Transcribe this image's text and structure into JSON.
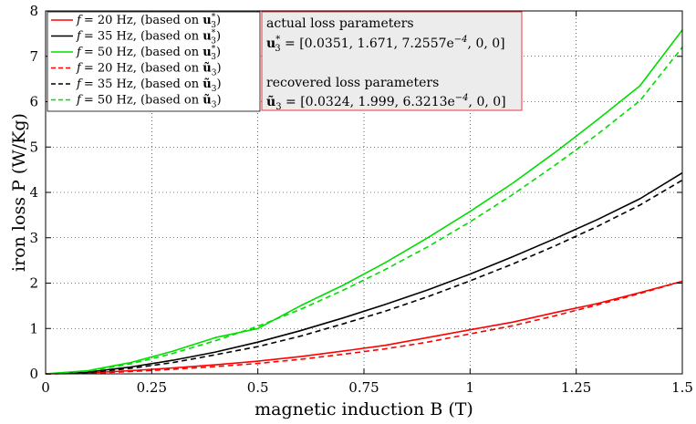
{
  "chart_data": {
    "type": "line",
    "xlabel": "magnetic induction B (T)",
    "ylabel": "iron loss P (W/Kg)",
    "xlim": [
      0,
      1.5
    ],
    "ylim": [
      0,
      8
    ],
    "x_ticks": [
      "0",
      "0.25",
      "0.5",
      "0.75",
      "1",
      "1.25",
      "1.5"
    ],
    "y_ticks": [
      "0",
      "1",
      "2",
      "3",
      "4",
      "5",
      "6",
      "7",
      "8"
    ],
    "grid": true,
    "legend_position": "top-left",
    "x": [
      0,
      0.1,
      0.2,
      0.3,
      0.4,
      0.5,
      0.6,
      0.7,
      0.8,
      0.9,
      1.0,
      1.1,
      1.2,
      1.3,
      1.4,
      1.5
    ],
    "series": [
      {
        "name": "f = 20 Hz, (based on u3*)",
        "color": "#ff0000",
        "dash": "solid",
        "values": [
          0,
          0.02,
          0.07,
          0.13,
          0.2,
          0.28,
          0.38,
          0.5,
          0.63,
          0.8,
          0.97,
          1.14,
          1.35,
          1.55,
          1.79,
          2.04
        ]
      },
      {
        "name": "f = 35 Hz, (based on u3*)",
        "color": "#000000",
        "dash": "solid",
        "values": [
          0,
          0.04,
          0.15,
          0.3,
          0.48,
          0.7,
          0.95,
          1.23,
          1.53,
          1.85,
          2.2,
          2.58,
          2.98,
          3.4,
          3.86,
          4.43
        ]
      },
      {
        "name": "f = 50 Hz, (based on u3*)",
        "color": "#00dd00",
        "dash": "solid",
        "values": [
          0,
          0.07,
          0.25,
          0.5,
          0.8,
          1.0,
          1.5,
          1.95,
          2.45,
          3.0,
          3.58,
          4.2,
          4.88,
          5.6,
          6.35,
          7.58
        ]
      },
      {
        "name": "f = 20 Hz, (based on ũ3)",
        "color": "#ff0000",
        "dash": "dashed",
        "values": [
          0,
          0.01,
          0.05,
          0.1,
          0.16,
          0.23,
          0.32,
          0.43,
          0.55,
          0.7,
          0.88,
          1.06,
          1.28,
          1.52,
          1.77,
          2.04
        ]
      },
      {
        "name": "f = 35 Hz, (based on ũ3)",
        "color": "#000000",
        "dash": "dashed",
        "values": [
          0,
          0.03,
          0.12,
          0.25,
          0.42,
          0.6,
          0.83,
          1.1,
          1.38,
          1.7,
          2.05,
          2.42,
          2.82,
          3.25,
          3.72,
          4.27
        ]
      },
      {
        "name": "f = 50 Hz, (based on ũ3)",
        "color": "#00dd00",
        "dash": "dashed",
        "values": [
          0,
          0.06,
          0.22,
          0.45,
          0.73,
          1.05,
          1.42,
          1.84,
          2.3,
          2.8,
          3.35,
          3.95,
          4.6,
          5.28,
          6.02,
          7.2
        ]
      }
    ],
    "legend_entries": [
      {
        "f_label": "f",
        "eq": "= 20 Hz, (based on ",
        "vec": "u",
        "sub": "3",
        "sup": "*",
        "tilde": false,
        "close": ")"
      },
      {
        "f_label": "f",
        "eq": "= 35 Hz, (based on ",
        "vec": "u",
        "sub": "3",
        "sup": "*",
        "tilde": false,
        "close": ")"
      },
      {
        "f_label": "f",
        "eq": "= 50 Hz, (based on ",
        "vec": "u",
        "sub": "3",
        "sup": "*",
        "tilde": false,
        "close": ")"
      },
      {
        "f_label": "f",
        "eq": "= 20 Hz, (based on ",
        "vec": "ũ",
        "sub": "3",
        "sup": "",
        "tilde": true,
        "close": ")"
      },
      {
        "f_label": "f",
        "eq": "= 35 Hz, (based on ",
        "vec": "ũ",
        "sub": "3",
        "sup": "",
        "tilde": true,
        "close": ")"
      },
      {
        "f_label": "f",
        "eq": "= 50 Hz, (based on ",
        "vec": "ũ",
        "sub": "3",
        "sup": "",
        "tilde": true,
        "close": ")"
      }
    ],
    "annotation": {
      "actual_title": "actual loss parameters",
      "actual_vec": "u",
      "actual_sub": "3",
      "actual_sup": "*",
      "actual_values": " = [0.0351, 1.671, 7.2557e",
      "actual_exp": "−4",
      "actual_tail": ", 0, 0]",
      "recovered_title": "recovered loss parameters",
      "recovered_vec": "ũ",
      "recovered_sub": "3",
      "recovered_values": " = [0.0324, 1.999, 6.3213e",
      "recovered_exp": "−4",
      "recovered_tail": ", 0, 0]"
    }
  }
}
